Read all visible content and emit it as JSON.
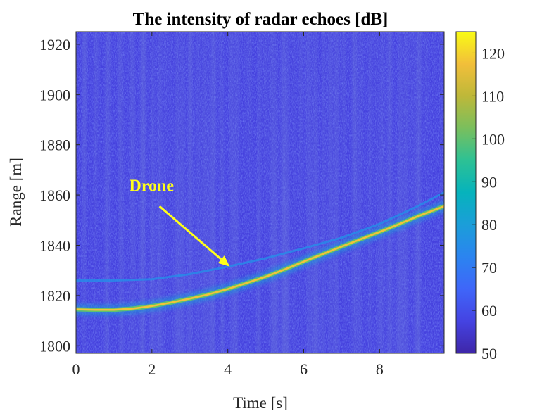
{
  "chart_data": {
    "type": "heatmap",
    "title": "The intensity of radar echoes [dB]",
    "xlabel": "Time [s]",
    "ylabel": "Range [m]",
    "xlim": [
      0,
      9.7
    ],
    "ylim": [
      1797,
      1925
    ],
    "x_ticks": [
      0,
      2,
      4,
      6,
      8
    ],
    "x_tick_labels": [
      "0",
      "2",
      "4",
      "6",
      "8"
    ],
    "y_ticks": [
      1800,
      1820,
      1840,
      1860,
      1880,
      1900,
      1920
    ],
    "y_tick_labels": [
      "1800",
      "1820",
      "1840",
      "1860",
      "1880",
      "1900",
      "1920"
    ],
    "colorbar": {
      "colormap": "parula",
      "range": [
        50,
        125
      ],
      "ticks": [
        50,
        60,
        70,
        80,
        90,
        100,
        110,
        120
      ],
      "tick_labels": [
        "50",
        "60",
        "70",
        "80",
        "90",
        "100",
        "110",
        "120"
      ]
    },
    "background_level_db": 57,
    "main_track": {
      "peak_level_db": 118,
      "points": [
        {
          "x": 0.0,
          "y": 1814.5
        },
        {
          "x": 0.5,
          "y": 1814.3
        },
        {
          "x": 1.0,
          "y": 1814.3
        },
        {
          "x": 1.5,
          "y": 1814.8
        },
        {
          "x": 2.0,
          "y": 1815.8
        },
        {
          "x": 2.5,
          "y": 1817.2
        },
        {
          "x": 3.0,
          "y": 1818.8
        },
        {
          "x": 3.5,
          "y": 1820.5
        },
        {
          "x": 4.0,
          "y": 1822.6
        },
        {
          "x": 4.5,
          "y": 1825.0
        },
        {
          "x": 5.0,
          "y": 1827.5
        },
        {
          "x": 5.5,
          "y": 1830.4
        },
        {
          "x": 6.0,
          "y": 1833.5
        },
        {
          "x": 6.5,
          "y": 1836.5
        },
        {
          "x": 7.0,
          "y": 1839.5
        },
        {
          "x": 7.5,
          "y": 1842.4
        },
        {
          "x": 8.0,
          "y": 1845.3
        },
        {
          "x": 8.5,
          "y": 1848.3
        },
        {
          "x": 9.0,
          "y": 1851.5
        },
        {
          "x": 9.7,
          "y": 1855.5
        }
      ]
    },
    "secondary_track": {
      "peak_level_db": 75,
      "points": [
        {
          "x": 0.0,
          "y": 1826.0
        },
        {
          "x": 1.0,
          "y": 1826.0
        },
        {
          "x": 2.0,
          "y": 1826.5
        },
        {
          "x": 3.0,
          "y": 1828.5
        },
        {
          "x": 4.0,
          "y": 1831.5
        },
        {
          "x": 5.0,
          "y": 1834.8
        },
        {
          "x": 6.0,
          "y": 1838.8
        },
        {
          "x": 7.0,
          "y": 1843.0
        },
        {
          "x": 8.0,
          "y": 1848.5
        },
        {
          "x": 9.0,
          "y": 1855.5
        },
        {
          "x": 9.7,
          "y": 1861.0
        }
      ]
    },
    "annotation": {
      "text": "Drone",
      "color": "#FFFF1A",
      "text_position": {
        "x": 1.4,
        "y": 1861.5
      },
      "arrow_tail": {
        "x": 2.2,
        "y": 1855.5
      },
      "arrow_head": {
        "x": 4.05,
        "y": 1831.5
      }
    }
  }
}
